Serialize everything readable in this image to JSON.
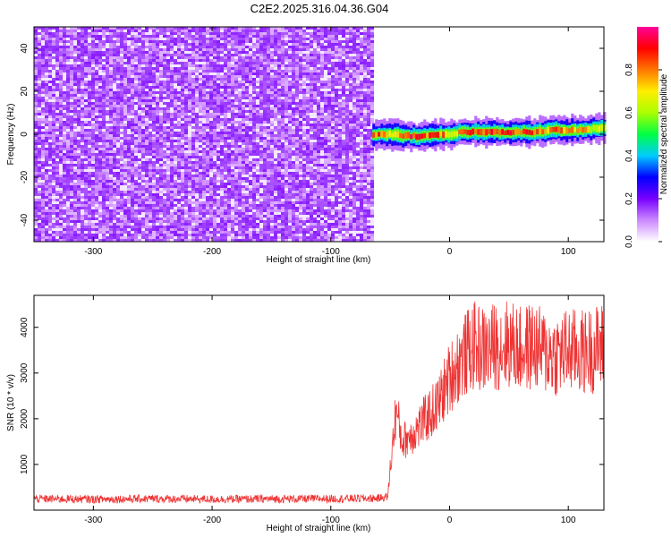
{
  "title": "C2E2.2025.316.04.36.G04",
  "colorbar": {
    "label": "Normalized spectral amplitude",
    "ticks": [
      0.0,
      0.2,
      0.4,
      0.6,
      0.8
    ],
    "tick_labels": [
      "0.0",
      "0.2",
      "0.4",
      "0.6",
      "0.8"
    ],
    "colors": [
      "#ffffff",
      "#cc88ff",
      "#7700ff",
      "#0000ff",
      "#00ccff",
      "#00ff44",
      "#aaff00",
      "#ffee00",
      "#ff7700",
      "#ff0000",
      "#ff0099"
    ]
  },
  "chart_data": [
    {
      "type": "heatmap",
      "xlabel": "Height of straight line (km)",
      "ylabel": "Frequency (Hz)",
      "xlim": [
        -350,
        130
      ],
      "ylim": [
        -50,
        50
      ],
      "xticks": [
        -300,
        -200,
        -100,
        0,
        100
      ],
      "xtick_labels": [
        "-300",
        "-200",
        "-100",
        "0",
        "100"
      ],
      "yticks": [
        -40,
        -20,
        0,
        20,
        40
      ],
      "ytick_labels": [
        "-40",
        "-20",
        "0",
        "20",
        "40"
      ],
      "noise_region_x": [
        -350,
        -65
      ],
      "signal_band": {
        "x": [
          -65,
          -50,
          -30,
          -10,
          0,
          10,
          30,
          50,
          70,
          90,
          110,
          130
        ],
        "center_freq": [
          0,
          0,
          -1,
          0,
          0,
          1,
          1,
          1,
          1,
          2,
          2,
          3
        ],
        "peak_amplitude": [
          0.85,
          0.75,
          0.9,
          0.85,
          0.7,
          0.85,
          0.9,
          0.9,
          0.85,
          0.8,
          0.75,
          0.6
        ]
      }
    },
    {
      "type": "line",
      "xlabel": "Height of straight line (km)",
      "ylabel": "SNR (10 * v/v)",
      "xlim": [
        -350,
        130
      ],
      "ylim": [
        0,
        4700
      ],
      "xticks": [
        -300,
        -200,
        -100,
        0,
        100
      ],
      "xtick_labels": [
        "-300",
        "-200",
        "-100",
        "0",
        "100"
      ],
      "yticks": [
        1000,
        2000,
        3000,
        4000
      ],
      "ytick_labels": [
        "1000",
        "2000",
        "3000",
        "4000"
      ],
      "color": "#ee3333",
      "x": [
        -350,
        -300,
        -250,
        -200,
        -150,
        -100,
        -60,
        -52,
        -50,
        -45,
        -40,
        -30,
        -20,
        -10,
        0,
        10,
        20,
        30,
        40,
        50,
        60,
        70,
        80,
        90,
        100,
        110,
        120,
        130
      ],
      "y": [
        250,
        240,
        250,
        240,
        245,
        250,
        260,
        300,
        900,
        2200,
        1500,
        1700,
        2000,
        2300,
        2900,
        3300,
        3600,
        3500,
        3600,
        3650,
        3500,
        3600,
        3450,
        3400,
        3500,
        3450,
        3500,
        3600
      ]
    }
  ]
}
